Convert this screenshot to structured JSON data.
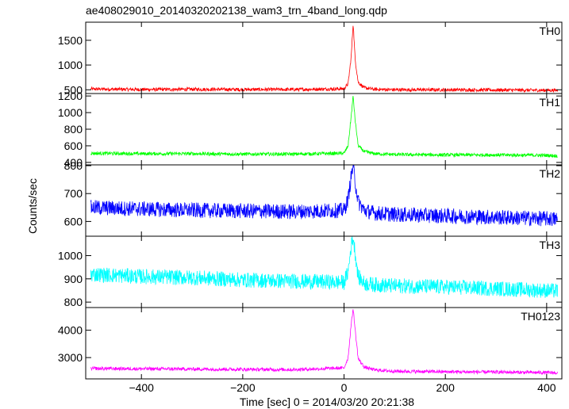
{
  "chart_data": {
    "type": "line",
    "title": "ae408029010_20140320202138_wam3_trn_4band_long.qdp",
    "xlabel": "Time [sec] 0 = 2014/03/20 20:21:38",
    "ylabel": "Counts/sec",
    "xlim": [
      -510,
      430
    ],
    "x_ticks": [
      -400,
      -200,
      0,
      200,
      400
    ],
    "x_tick_labels": [
      "−400",
      "−200",
      "0",
      "200",
      "400"
    ],
    "grid": false,
    "panels": [
      {
        "name": "TH0",
        "color": "#ff0000",
        "ylim": [
          440,
          1850
        ],
        "yticks": [
          500,
          1000,
          1500
        ],
        "ytick_labels": [
          "500",
          "1000",
          "1500"
        ],
        "x": [
          -500,
          -400,
          -300,
          -200,
          -100,
          0,
          8,
          14,
          18,
          22,
          28,
          40,
          60,
          100,
          200,
          300,
          400,
          420
        ],
        "y": [
          515,
          505,
          510,
          505,
          505,
          520,
          620,
          1150,
          1850,
          1100,
          650,
          540,
          510,
          500,
          500,
          495,
          490,
          490
        ]
      },
      {
        "name": "TH1",
        "color": "#00ff00",
        "ylim": [
          380,
          1220
        ],
        "yticks": [
          400,
          600,
          800,
          1000,
          1200
        ],
        "ytick_labels": [
          "400",
          "600",
          "800",
          "1000",
          "1200"
        ],
        "x": [
          -500,
          -400,
          -300,
          -200,
          -100,
          0,
          8,
          14,
          18,
          22,
          28,
          40,
          60,
          100,
          200,
          300,
          400,
          420
        ],
        "y": [
          510,
          505,
          505,
          500,
          500,
          510,
          600,
          950,
          1200,
          900,
          600,
          530,
          505,
          495,
          490,
          490,
          485,
          480
        ]
      },
      {
        "name": "TH2",
        "color": "#0000ff",
        "ylim": [
          550,
          800
        ],
        "yticks": [
          600,
          700,
          800
        ],
        "ytick_labels": [
          "600",
          "700",
          "800"
        ],
        "x": [
          -500,
          -400,
          -300,
          -200,
          -100,
          0,
          8,
          14,
          18,
          22,
          28,
          40,
          60,
          100,
          200,
          300,
          400,
          420
        ],
        "y": [
          650,
          645,
          640,
          638,
          635,
          640,
          680,
          760,
          800,
          740,
          670,
          640,
          630,
          625,
          620,
          615,
          610,
          608
        ]
      },
      {
        "name": "TH3",
        "color": "#00ffff",
        "ylim": [
          780,
          1080
        ],
        "yticks": [
          800,
          900,
          1000
        ],
        "ytick_labels": [
          "800",
          "900",
          "1000"
        ],
        "x": [
          -500,
          -400,
          -300,
          -200,
          -100,
          0,
          8,
          14,
          18,
          22,
          28,
          40,
          60,
          100,
          200,
          300,
          400,
          420
        ],
        "y": [
          920,
          910,
          905,
          895,
          890,
          885,
          930,
          1040,
          1080,
          1010,
          910,
          880,
          875,
          870,
          865,
          858,
          850,
          848
        ]
      },
      {
        "name": "TH0123",
        "color": "#ff00ff",
        "ylim": [
          2250,
          4800
        ],
        "yticks": [
          3000,
          4000
        ],
        "ytick_labels": [
          "3000",
          "4000"
        ],
        "x": [
          -500,
          -400,
          -300,
          -200,
          -100,
          0,
          8,
          14,
          18,
          22,
          28,
          40,
          60,
          100,
          200,
          300,
          400,
          420
        ],
        "y": [
          2600,
          2590,
          2580,
          2570,
          2560,
          2620,
          3000,
          4200,
          4800,
          4000,
          2950,
          2650,
          2550,
          2500,
          2480,
          2470,
          2450,
          2440
        ]
      }
    ]
  }
}
